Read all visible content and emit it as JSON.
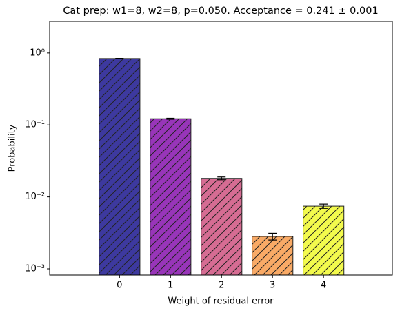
{
  "chart_data": {
    "type": "bar",
    "title": "Cat prep: w1=8, w2=8, p=0.050. Acceptance = 0.241 ± 0.001",
    "x_label": "Weight of residual error",
    "y_label": "Probability",
    "x": [
      0,
      1,
      2,
      3,
      4
    ],
    "xticks": [
      0,
      1,
      2,
      3,
      4
    ],
    "xlim": [
      -1.37,
      5.35
    ],
    "values": [
      0.838,
      0.122,
      0.0181,
      0.00282,
      0.00743
    ],
    "errors": [
      0.005,
      0.002,
      0.0008,
      0.0003,
      0.0005
    ],
    "colors": [
      "#0d0887",
      "#7e03a8",
      "#cc4778",
      "#f89540",
      "#f0f921"
    ],
    "log_y": true,
    "ylim": [
      0.00082,
      2.75
    ],
    "yticks": [
      {
        "value": 0.001,
        "label": "10⁻³"
      },
      {
        "value": 0.01,
        "label": "10⁻²"
      },
      {
        "value": 0.1,
        "label": "10⁻¹"
      },
      {
        "value": 1,
        "label": "10⁰"
      }
    ]
  }
}
